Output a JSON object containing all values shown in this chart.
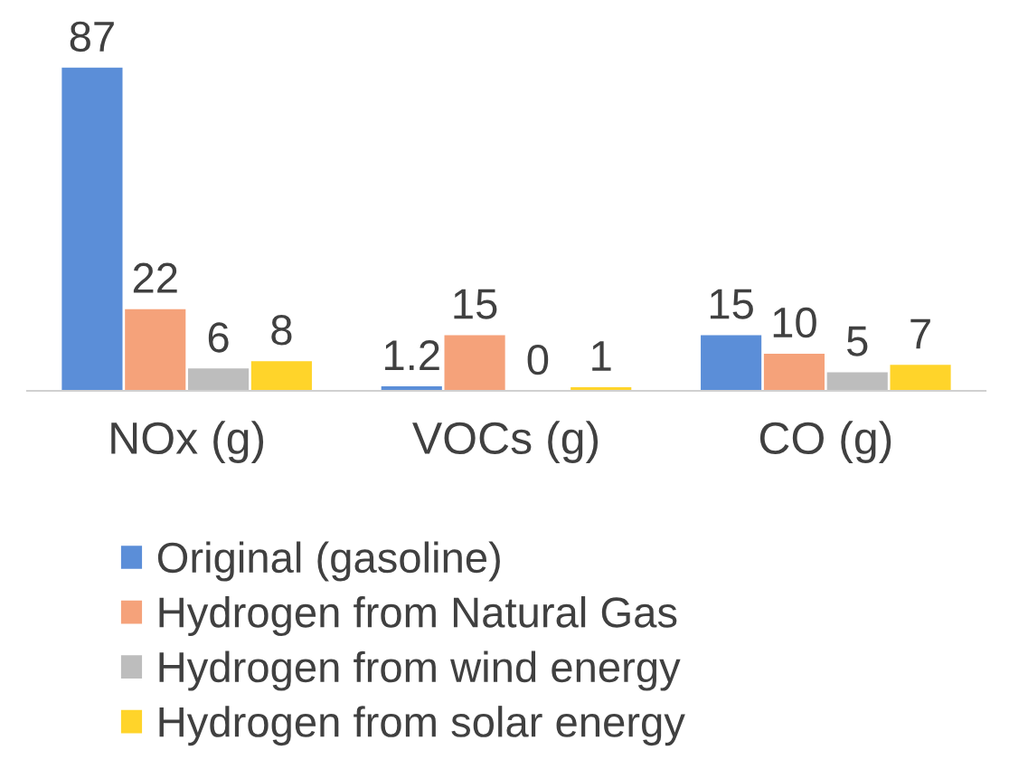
{
  "chart_data": {
    "type": "bar",
    "categories": [
      "NOx (g)",
      "VOCs (g)",
      "CO (g)"
    ],
    "series": [
      {
        "name": "Original (gasoline)",
        "color": "#5b8ed8",
        "values": [
          87,
          1.2,
          15
        ]
      },
      {
        "name": "Hydrogen from Natural Gas",
        "color": "#f5a27a",
        "values": [
          22,
          15,
          10
        ]
      },
      {
        "name": "Hydrogen from wind energy",
        "color": "#bdbdbd",
        "values": [
          6,
          0,
          5
        ]
      },
      {
        "name": "Hydrogen from solar energy",
        "color": "#ffd42a",
        "values": [
          8,
          1,
          7
        ]
      }
    ],
    "data_labels": true,
    "legend": "bottom",
    "tick_labels": "x"
  }
}
